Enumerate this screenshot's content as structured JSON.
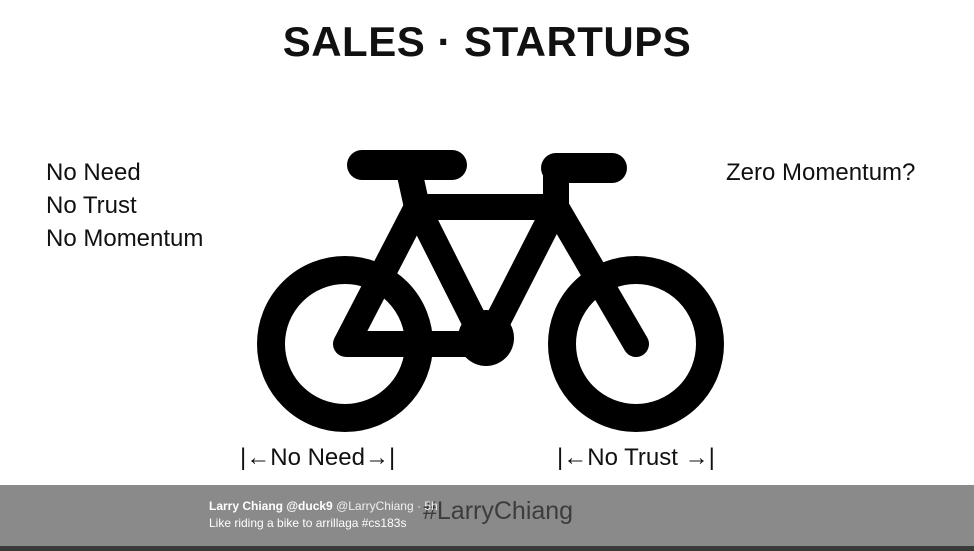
{
  "slide": {
    "title": "SALES · STARTUPS",
    "left_items": [
      "No Need",
      "No Trust",
      "No Momentum"
    ],
    "right_question": "Zero Momentum?",
    "measure_left": "|←No Need→|",
    "measure_right": "|←No Trust →|"
  },
  "watermark": {
    "hashtag": "#LarryChiang"
  },
  "tweet": {
    "name": "Larry Chiang @duck9",
    "handle": "@LarryChiang",
    "separator": "·",
    "time": "5h",
    "text": "Like riding a bike to arrillaga #cs183s"
  },
  "colors": {
    "ink": "#000000",
    "footer": "#8a8a8a",
    "footer_text": "#ffffff"
  },
  "icons": {
    "bike": "bicycle-icon"
  }
}
